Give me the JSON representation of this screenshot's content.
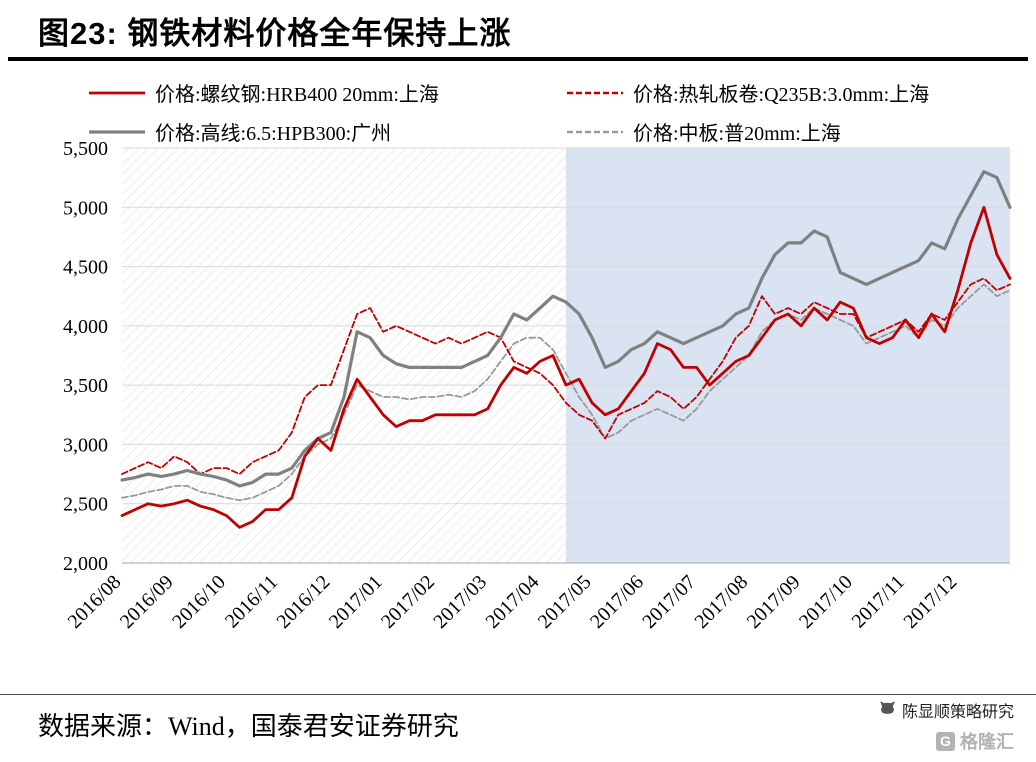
{
  "title": "图23: 钢铁材料价格全年保持上涨",
  "footer": {
    "source": "数据来源：Wind，国泰君安证券研究",
    "watermark_name": "陈显顺策略研究",
    "watermark_logo": "格隆汇"
  },
  "chart_data": {
    "type": "line",
    "title": "钢铁材料价格全年保持上涨",
    "ylim": [
      2000,
      5500
    ],
    "y_ticks": [
      2000,
      2500,
      3000,
      3500,
      4000,
      4500,
      5000,
      5500
    ],
    "x_labels": [
      "2016/08",
      "2016/09",
      "2016/10",
      "2016/11",
      "2016/12",
      "2017/01",
      "2017/02",
      "2017/03",
      "2017/04",
      "2017/05",
      "2017/06",
      "2017/07",
      "2017/08",
      "2017/09",
      "2017/10",
      "2017/11",
      "2017/12"
    ],
    "points_per_month": 4,
    "grid_on": true,
    "legend_position": "top",
    "shade_start_index": 34,
    "shade_color": "#DAE3F1",
    "hatch_color": "#E2E2E2",
    "grid_color": "#D9D9D9",
    "axis_color": "#A6A6A6",
    "draw_order": [
      3,
      1,
      2,
      0
    ],
    "series": [
      {
        "name": "价格:螺纹钢:HRB400 20mm:上海",
        "color": "#C00000",
        "width": 2.8,
        "dash": null,
        "values": [
          2400,
          2450,
          2500,
          2480,
          2500,
          2530,
          2480,
          2450,
          2400,
          2300,
          2350,
          2450,
          2450,
          2550,
          2900,
          3050,
          2950,
          3300,
          3550,
          3400,
          3250,
          3150,
          3200,
          3200,
          3250,
          3250,
          3250,
          3250,
          3300,
          3500,
          3650,
          3600,
          3700,
          3750,
          3500,
          3550,
          3350,
          3250,
          3300,
          3450,
          3600,
          3850,
          3800,
          3650,
          3650,
          3500,
          3600,
          3700,
          3750,
          3900,
          4050,
          4100,
          4000,
          4150,
          4050,
          4200,
          4150,
          3900,
          3850,
          3900,
          4050,
          3900,
          4100,
          3950,
          4300,
          4700,
          5000,
          4600,
          4400
        ]
      },
      {
        "name": "价格:热轧板卷:Q235B:3.0mm:上海",
        "color": "#C00000",
        "width": 1.8,
        "dash": "6 3",
        "values": [
          2750,
          2800,
          2850,
          2800,
          2900,
          2850,
          2750,
          2800,
          2800,
          2750,
          2850,
          2900,
          2950,
          3100,
          3400,
          3500,
          3500,
          3800,
          4100,
          4150,
          3950,
          4000,
          3950,
          3900,
          3850,
          3900,
          3850,
          3900,
          3950,
          3900,
          3700,
          3650,
          3600,
          3500,
          3350,
          3250,
          3200,
          3050,
          3250,
          3300,
          3350,
          3450,
          3400,
          3300,
          3400,
          3550,
          3700,
          3900,
          4000,
          4250,
          4100,
          4150,
          4100,
          4200,
          4150,
          4100,
          4100,
          3900,
          3950,
          4000,
          4050,
          3950,
          4100,
          4050,
          4200,
          4350,
          4400,
          4300,
          4350
        ]
      },
      {
        "name": "价格:高线:6.5:HPB300:广州",
        "color": "#808080",
        "width": 3.2,
        "dash": null,
        "values": [
          2700,
          2720,
          2750,
          2730,
          2750,
          2780,
          2750,
          2730,
          2700,
          2650,
          2680,
          2750,
          2750,
          2800,
          2950,
          3050,
          3100,
          3400,
          3950,
          3900,
          3750,
          3680,
          3650,
          3650,
          3650,
          3650,
          3650,
          3700,
          3750,
          3900,
          4100,
          4050,
          4150,
          4250,
          4200,
          4100,
          3900,
          3650,
          3700,
          3800,
          3850,
          3950,
          3900,
          3850,
          3900,
          3950,
          4000,
          4100,
          4150,
          4400,
          4600,
          4700,
          4700,
          4800,
          4750,
          4450,
          4400,
          4350,
          4400,
          4450,
          4500,
          4550,
          4700,
          4650,
          4900,
          5100,
          5300,
          5250,
          5000
        ]
      },
      {
        "name": "价格:中板:普20mm:上海",
        "color": "#999999",
        "width": 1.8,
        "dash": "6 3",
        "values": [
          2550,
          2570,
          2600,
          2620,
          2650,
          2650,
          2600,
          2580,
          2550,
          2530,
          2550,
          2600,
          2650,
          2750,
          2900,
          3000,
          3050,
          3250,
          3500,
          3450,
          3400,
          3400,
          3380,
          3400,
          3400,
          3420,
          3400,
          3450,
          3550,
          3700,
          3850,
          3900,
          3900,
          3800,
          3600,
          3400,
          3250,
          3050,
          3100,
          3200,
          3250,
          3300,
          3250,
          3200,
          3300,
          3450,
          3550,
          3650,
          3750,
          3950,
          4050,
          4100,
          4050,
          4150,
          4100,
          4050,
          4000,
          3850,
          3900,
          3950,
          4000,
          3900,
          4050,
          4000,
          4150,
          4250,
          4350,
          4250,
          4300
        ]
      }
    ]
  }
}
